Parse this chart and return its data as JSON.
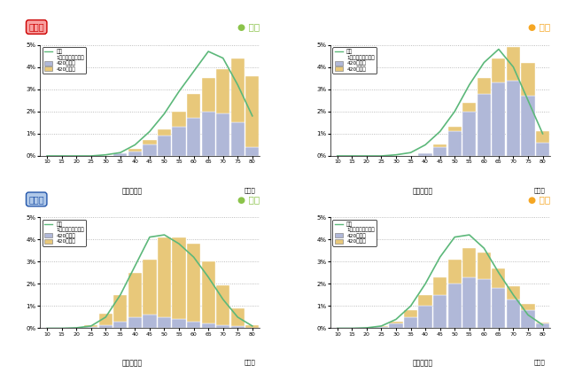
{
  "panels": [
    {
      "school": "小学校",
      "gender": "男子",
      "gender_color": "#8bc34a",
      "school_bg": "#f8a0a0",
      "school_text_color": "#cc0000",
      "bar_under_color": "#b0b8d8",
      "bar_over_color": "#e8c87a",
      "x_ticks": [
        10,
        15,
        20,
        25,
        30,
        35,
        40,
        45,
        50,
        55,
        60,
        65,
        70,
        75,
        80
      ],
      "bar_under_values": [
        0,
        0,
        0,
        0,
        0,
        0.1,
        0.2,
        0.5,
        0.9,
        1.3,
        1.7,
        2.0,
        1.9,
        1.5,
        0.4
      ],
      "bar_over_values": [
        0,
        0,
        0,
        0,
        0,
        0.0,
        0.1,
        0.2,
        0.3,
        0.7,
        1.1,
        1.5,
        2.0,
        2.9,
        3.2
      ],
      "curve_y": [
        0,
        0,
        0,
        0,
        0.05,
        0.15,
        0.5,
        1.1,
        1.9,
        2.9,
        3.8,
        4.7,
        4.4,
        3.2,
        1.8
      ]
    },
    {
      "school": "小学校",
      "gender": "女子",
      "gender_color": "#f5a623",
      "school_bg": null,
      "school_text_color": null,
      "bar_under_color": "#b0b8d8",
      "bar_over_color": "#e8c87a",
      "x_ticks": [
        10,
        15,
        20,
        25,
        30,
        35,
        40,
        45,
        50,
        55,
        60,
        65,
        70,
        75,
        80
      ],
      "bar_under_values": [
        0,
        0,
        0,
        0,
        0,
        0.0,
        0.1,
        0.4,
        1.1,
        2.0,
        2.8,
        3.3,
        3.4,
        2.7,
        0.6
      ],
      "bar_over_values": [
        0,
        0,
        0,
        0,
        0,
        0.0,
        0.0,
        0.1,
        0.2,
        0.4,
        0.7,
        1.1,
        1.5,
        1.5,
        0.5
      ],
      "curve_y": [
        0,
        0,
        0,
        0,
        0.05,
        0.15,
        0.5,
        1.1,
        2.0,
        3.2,
        4.2,
        4.8,
        4.0,
        2.5,
        1.0
      ]
    },
    {
      "school": "中学校",
      "gender": "男子",
      "gender_color": "#8bc34a",
      "school_bg": "#b0c8e8",
      "school_text_color": "#2255aa",
      "bar_under_color": "#b0b8d8",
      "bar_over_color": "#e8c87a",
      "x_ticks": [
        10,
        15,
        20,
        25,
        30,
        35,
        40,
        45,
        50,
        55,
        60,
        65,
        70,
        75,
        80
      ],
      "bar_under_values": [
        0,
        0,
        0,
        0.05,
        0.15,
        0.3,
        0.5,
        0.6,
        0.5,
        0.4,
        0.3,
        0.2,
        0.15,
        0.1,
        0.0
      ],
      "bar_over_values": [
        0,
        0,
        0,
        0.1,
        0.5,
        1.2,
        2.0,
        2.5,
        3.6,
        3.7,
        3.5,
        2.8,
        1.8,
        0.8,
        0.15
      ],
      "curve_y": [
        0,
        0,
        0.02,
        0.1,
        0.5,
        1.5,
        2.8,
        4.1,
        4.2,
        3.8,
        3.2,
        2.3,
        1.3,
        0.5,
        0.1
      ]
    },
    {
      "school": "中学校",
      "gender": "女子",
      "gender_color": "#f5a623",
      "school_bg": null,
      "school_text_color": null,
      "bar_under_color": "#b0b8d8",
      "bar_over_color": "#e8c87a",
      "x_ticks": [
        10,
        15,
        20,
        25,
        30,
        35,
        40,
        45,
        50,
        55,
        60,
        65,
        70,
        75,
        80
      ],
      "bar_under_values": [
        0,
        0,
        0,
        0.05,
        0.2,
        0.5,
        1.0,
        1.5,
        2.0,
        2.3,
        2.2,
        1.8,
        1.3,
        0.8,
        0.2
      ],
      "bar_over_values": [
        0,
        0,
        0,
        0.05,
        0.1,
        0.3,
        0.5,
        0.8,
        1.1,
        1.3,
        1.2,
        0.9,
        0.6,
        0.3,
        0.05
      ],
      "curve_y": [
        0,
        0,
        0.02,
        0.1,
        0.4,
        1.0,
        2.0,
        3.2,
        4.1,
        4.2,
        3.6,
        2.5,
        1.5,
        0.6,
        0.15
      ]
    }
  ],
  "xlabel": "体力合計点",
  "xlabel_unit": "（点）",
  "yticks": [
    0,
    1,
    2,
    3,
    4,
    5
  ],
  "ytick_labels": [
    "0%",
    "1%",
    "2%",
    "3%",
    "4%",
    "5%"
  ],
  "curve_color": "#5cb87a",
  "grid_color": "#aaaaaa",
  "bg_color": "#ffffff"
}
